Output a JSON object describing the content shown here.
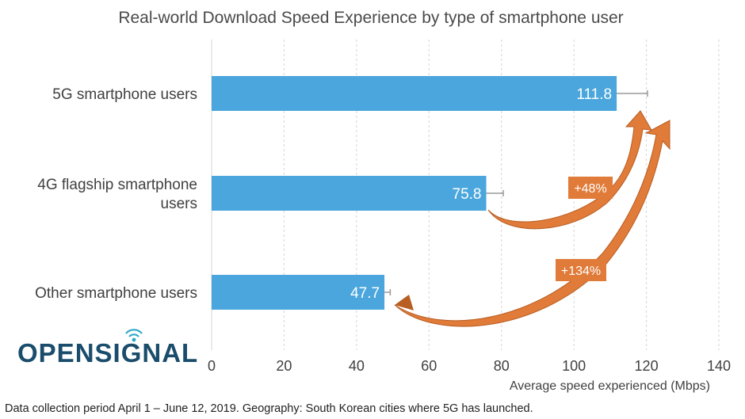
{
  "chart_data": {
    "type": "bar",
    "orientation": "horizontal",
    "title": "Real-world Download Speed Experience by type of smartphone user",
    "categories": [
      [
        "5G smartphone users"
      ],
      [
        "4G flagship smartphone",
        "users"
      ],
      [
        "Other smartphone users"
      ]
    ],
    "values": [
      111.8,
      75.8,
      47.7
    ],
    "value_labels": [
      "111.8",
      "75.8",
      "47.7"
    ],
    "error_upper": [
      120.3,
      80.5,
      49.3
    ],
    "error_lower": [
      111.8,
      75.8,
      47.7
    ],
    "xlabel": "Average speed experienced (Mbps)",
    "xlim": [
      0,
      140
    ],
    "xticks": [
      "0",
      "20",
      "40",
      "60",
      "80",
      "100",
      "120",
      "140"
    ],
    "grid": true,
    "annotations": [
      {
        "label": "+48%",
        "from_category": 1,
        "to_category": 0
      },
      {
        "label": "+134%",
        "from_category": 2,
        "to_category": 0
      }
    ],
    "colors": {
      "bar": "#4aa6dc",
      "arrow": "#e07b39",
      "arrow_dark": "#b85e22",
      "grid": "#d6d6d6"
    }
  },
  "logo": {
    "text": "OPENSIGNAL",
    "color": "#1a4c6b",
    "accent": "#2aa9c7"
  },
  "footnote": "Data collection period April 1 – June 12, 2019. Geography: South Korean cities where 5G has launched."
}
